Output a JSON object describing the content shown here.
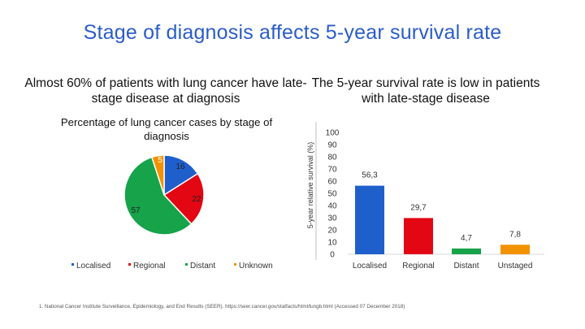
{
  "title": "Stage of diagnosis affects 5-year survival rate",
  "left_subtitle": "Almost 60% of patients with lung cancer have late-stage disease at diagnosis",
  "right_subtitle": "The 5-year survival rate is low in patients with late-stage disease",
  "footnote": "1. National Cancer Institute Surveillance, Epidemiology, and End Results (SEER). https://seer.cancer.gov/statfacts/html/lungb.html (Accessed 07 December 2018)",
  "chart_data": [
    {
      "type": "pie",
      "title": "Percentage of lung cancer cases by stage of diagnosis",
      "categories": [
        "Localised",
        "Regional",
        "Distant",
        "Unknown"
      ],
      "values": [
        16,
        22,
        57,
        5
      ],
      "colors": [
        "#1f5fcc",
        "#e30613",
        "#16a34a",
        "#f39200"
      ],
      "legend": "bottom"
    },
    {
      "type": "bar",
      "categories": [
        "Localised",
        "Regional",
        "Distant",
        "Unstaged"
      ],
      "values": [
        56.3,
        29.7,
        4.7,
        7.8
      ],
      "value_labels": [
        "56,3",
        "29,7",
        "4,7",
        "7,8"
      ],
      "colors": [
        "#1f5fcc",
        "#e30613",
        "#16a34a",
        "#f39200"
      ],
      "ylabel": "5-year relative survival (%)",
      "ylim": [
        0,
        100
      ],
      "yticks": [
        0,
        10,
        20,
        30,
        40,
        50,
        60,
        70,
        80,
        90,
        100
      ]
    }
  ]
}
